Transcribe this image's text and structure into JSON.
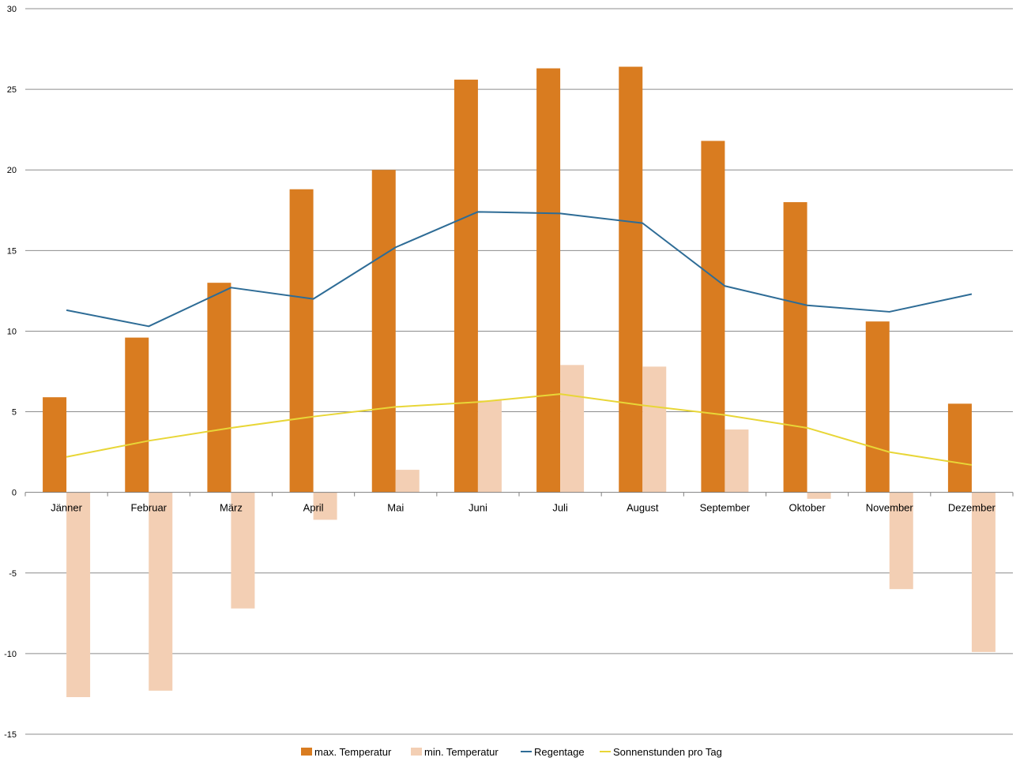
{
  "chart_data": {
    "type": "bar",
    "title": "",
    "xlabel": "",
    "ylabel": "",
    "ylim": [
      -15,
      30
    ],
    "yticks": [
      -15,
      -10,
      -5,
      0,
      5,
      10,
      15,
      20,
      25,
      30
    ],
    "grid": true,
    "legend_position": "bottom",
    "categories": [
      "Jänner",
      "Februar",
      "März",
      "April",
      "Mai",
      "Juni",
      "Juli",
      "August",
      "September",
      "Oktober",
      "November",
      "Dezember"
    ],
    "series": [
      {
        "name": "max. Temperatur",
        "kind": "bar",
        "color": "#D97C20",
        "values": [
          5.9,
          9.6,
          13.0,
          18.8,
          20.0,
          25.6,
          26.3,
          26.4,
          21.8,
          18.0,
          10.6,
          5.5
        ]
      },
      {
        "name": "min. Temperatur",
        "kind": "bar",
        "color": "#F3CFB4",
        "values": [
          -12.7,
          -12.3,
          -7.2,
          -1.7,
          1.4,
          5.7,
          7.9,
          7.8,
          3.9,
          -0.4,
          -6.0,
          -9.9
        ]
      },
      {
        "name": "Regentage",
        "kind": "line",
        "color": "#2E6C96",
        "values": [
          11.3,
          10.3,
          12.7,
          12.0,
          15.2,
          17.4,
          17.3,
          16.7,
          12.8,
          11.6,
          11.2,
          12.3
        ]
      },
      {
        "name": "Sonnenstunden pro Tag",
        "kind": "line",
        "color": "#E8D637",
        "values": [
          2.2,
          3.2,
          4.0,
          4.7,
          5.3,
          5.6,
          6.1,
          5.4,
          4.8,
          4.0,
          2.5,
          1.7
        ]
      }
    ]
  }
}
